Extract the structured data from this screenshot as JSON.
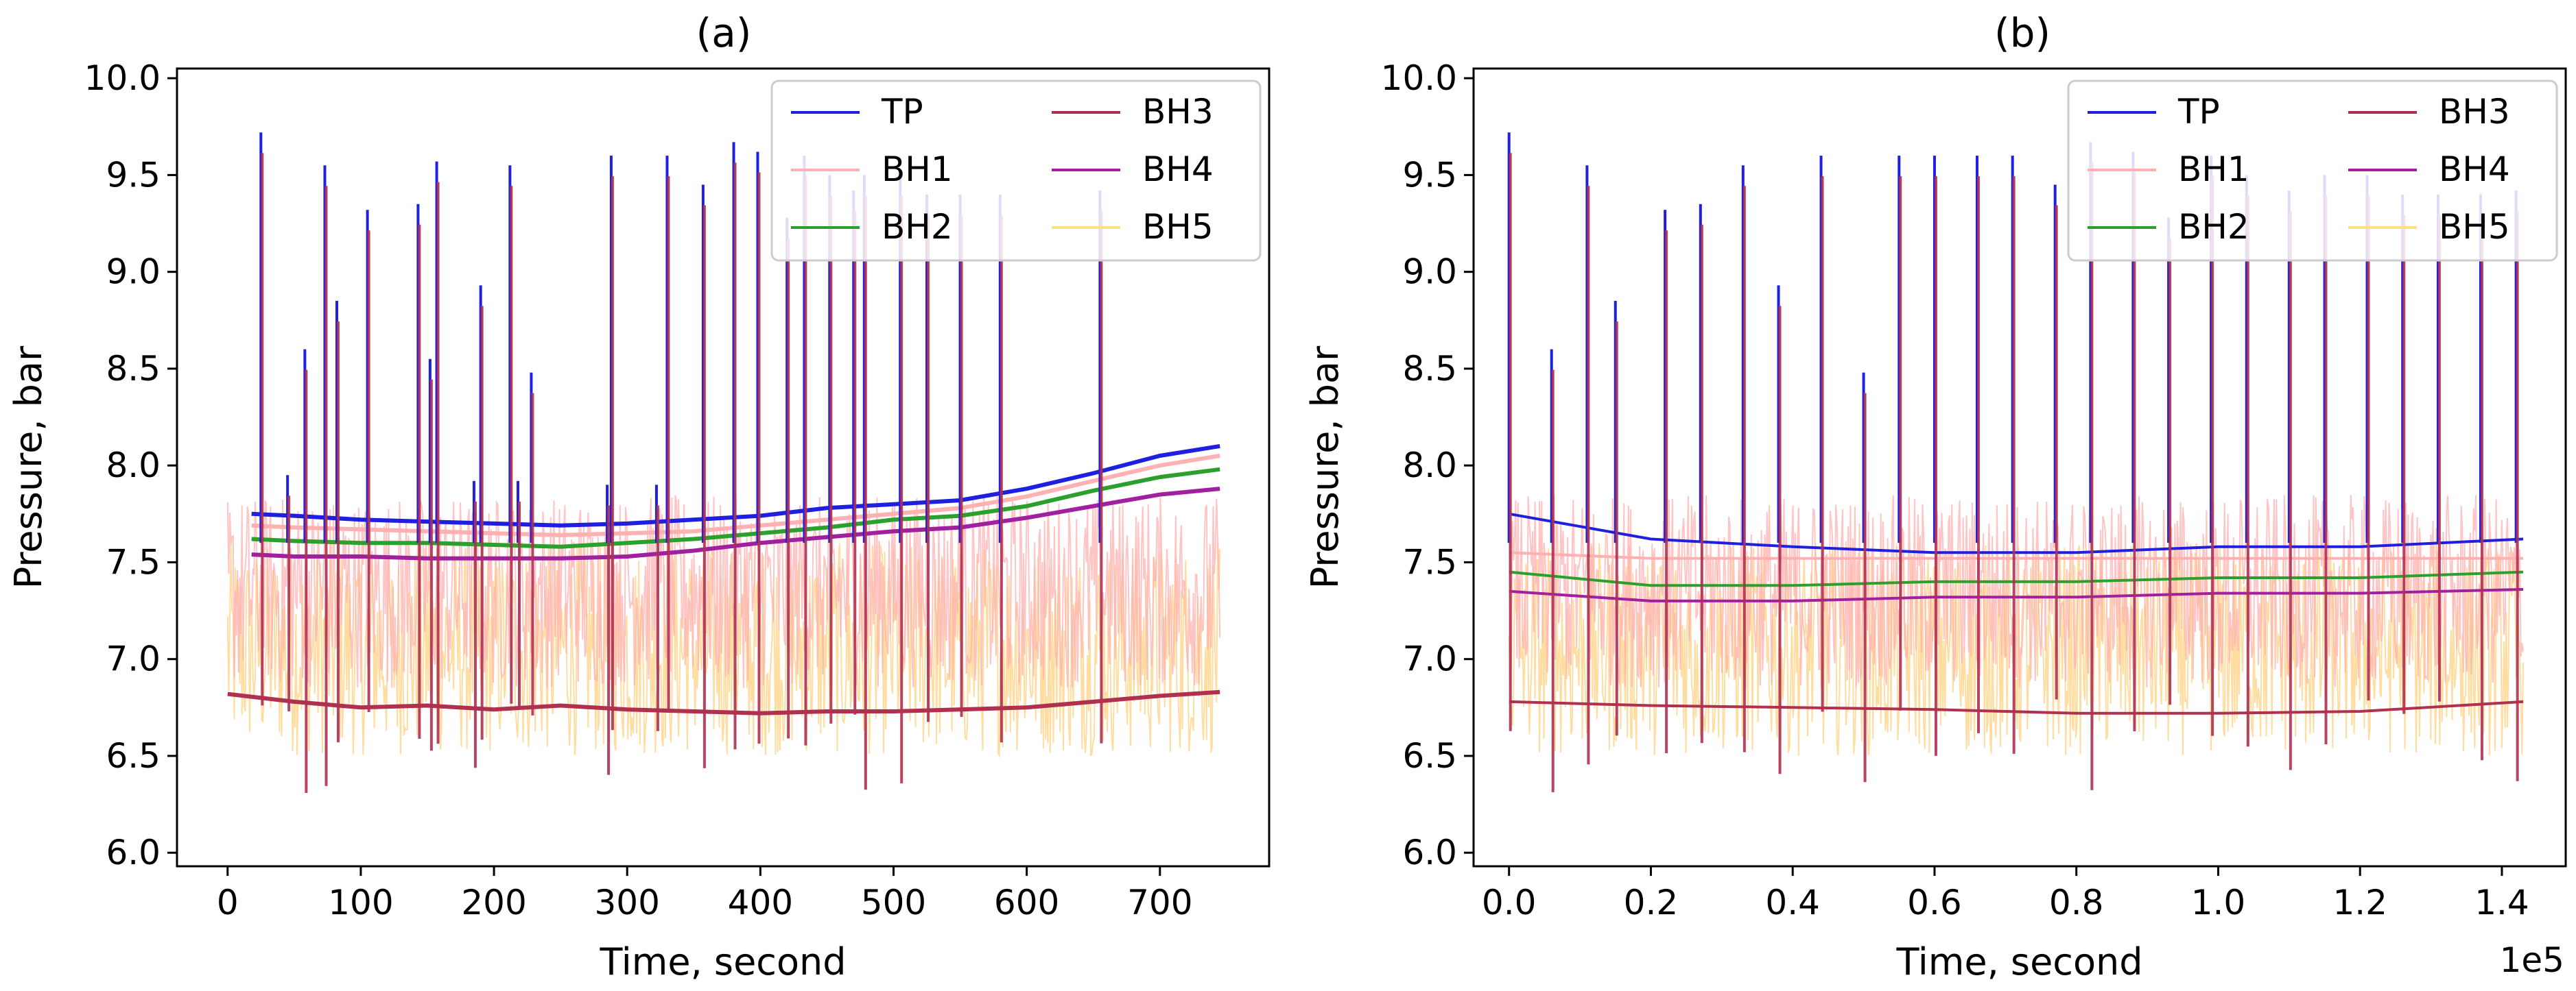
{
  "charts": [
    {
      "id": "a",
      "title": "(a)",
      "xlabel": "Time, second",
      "ylabel": "Pressure, bar",
      "xlim": [
        -38,
        782
      ],
      "ylim": [
        5.93,
        10.05
      ],
      "xticks": [
        0,
        100,
        200,
        300,
        400,
        500,
        600,
        700
      ],
      "xtick_labels": [
        "0",
        "100",
        "200",
        "300",
        "400",
        "500",
        "600",
        "700"
      ],
      "yticks": [
        6.0,
        6.5,
        7.0,
        7.5,
        8.0,
        8.5,
        9.0,
        9.5,
        10.0
      ],
      "ytick_labels": [
        "6.0",
        "6.5",
        "7.0",
        "7.5",
        "8.0",
        "8.5",
        "9.0",
        "9.5",
        "10.0"
      ],
      "x_offset_label": ""
    },
    {
      "id": "b",
      "title": "(b)",
      "xlabel": "Time, second",
      "ylabel": "Pressure, bar",
      "xlim": [
        -0.05,
        1.49
      ],
      "ylim": [
        5.93,
        10.05
      ],
      "xticks": [
        0.0,
        0.2,
        0.4,
        0.6,
        0.8,
        1.0,
        1.2,
        1.4
      ],
      "xtick_labels": [
        "0.0",
        "0.2",
        "0.4",
        "0.6",
        "0.8",
        "1.0",
        "1.2",
        "1.4"
      ],
      "yticks": [
        6.0,
        6.5,
        7.0,
        7.5,
        8.0,
        8.5,
        9.0,
        9.5,
        10.0
      ],
      "ytick_labels": [
        "6.0",
        "6.5",
        "7.0",
        "7.5",
        "8.0",
        "8.5",
        "9.0",
        "9.5",
        "10.0"
      ],
      "x_offset_label": "1e5"
    }
  ],
  "legend": {
    "placement": "top-right",
    "columns": 2,
    "entries": [
      {
        "name": "TP",
        "color": "#1f1fe0"
      },
      {
        "name": "BH1",
        "color": "#ffb0b0"
      },
      {
        "name": "BH2",
        "color": "#2ca02c"
      },
      {
        "name": "BH3",
        "color": "#b03050"
      },
      {
        "name": "BH4",
        "color": "#a020a0"
      },
      {
        "name": "BH5",
        "color": "#ffe080"
      }
    ]
  },
  "chart_data": [
    {
      "type": "line",
      "panel": "a",
      "title": "(a)",
      "xlabel": "Time, second",
      "ylabel": "Pressure, bar",
      "xlim": [
        -38,
        782
      ],
      "ylim": [
        5.93,
        10.05
      ],
      "spike_times": [
        25,
        45,
        58,
        73,
        82,
        105,
        143,
        152,
        157,
        185,
        190,
        212,
        218,
        228,
        285,
        288,
        322,
        330,
        357,
        380,
        398,
        420,
        433,
        452,
        470,
        478,
        505,
        525,
        550,
        580,
        655
      ],
      "spike_peaks": [
        9.72,
        7.95,
        8.6,
        9.55,
        8.85,
        9.32,
        9.35,
        8.55,
        9.57,
        7.92,
        8.93,
        9.55,
        7.92,
        8.48,
        7.9,
        9.6,
        7.9,
        9.6,
        9.45,
        9.67,
        9.62,
        9.28,
        9.6,
        9.5,
        9.42,
        9.5,
        9.5,
        9.4,
        9.4,
        9.4,
        9.42
      ],
      "series": [
        {
          "name": "TP",
          "color": "#1f1fe0",
          "x": [
            18,
            50,
            100,
            150,
            200,
            250,
            300,
            350,
            400,
            450,
            500,
            550,
            600,
            650,
            700,
            745
          ],
          "y": [
            7.75,
            7.74,
            7.72,
            7.71,
            7.7,
            7.69,
            7.7,
            7.72,
            7.74,
            7.78,
            7.8,
            7.82,
            7.88,
            7.96,
            8.05,
            8.1
          ]
        },
        {
          "name": "BH1",
          "color": "#ffb0b0",
          "x": [
            18,
            50,
            100,
            150,
            200,
            250,
            300,
            350,
            400,
            450,
            500,
            550,
            600,
            650,
            700,
            745
          ],
          "y": [
            7.69,
            7.68,
            7.67,
            7.66,
            7.65,
            7.64,
            7.65,
            7.66,
            7.69,
            7.72,
            7.75,
            7.78,
            7.84,
            7.92,
            8.0,
            8.05
          ]
        },
        {
          "name": "BH2",
          "color": "#2ca02c",
          "x": [
            18,
            50,
            100,
            150,
            200,
            250,
            300,
            350,
            400,
            450,
            500,
            550,
            600,
            650,
            700,
            745
          ],
          "y": [
            7.62,
            7.61,
            7.6,
            7.6,
            7.59,
            7.58,
            7.6,
            7.62,
            7.65,
            7.68,
            7.72,
            7.74,
            7.79,
            7.87,
            7.94,
            7.98
          ]
        },
        {
          "name": "BH3",
          "color": "#b03050",
          "x": [
            0,
            50,
            100,
            150,
            200,
            250,
            300,
            350,
            400,
            450,
            500,
            550,
            600,
            650,
            700,
            745
          ],
          "y": [
            6.82,
            6.78,
            6.75,
            6.76,
            6.74,
            6.76,
            6.74,
            6.73,
            6.72,
            6.73,
            6.73,
            6.74,
            6.75,
            6.78,
            6.81,
            6.83
          ]
        },
        {
          "name": "BH4",
          "color": "#a020a0",
          "x": [
            18,
            50,
            100,
            150,
            200,
            250,
            300,
            350,
            400,
            450,
            500,
            550,
            600,
            650,
            700,
            745
          ],
          "y": [
            7.54,
            7.53,
            7.53,
            7.52,
            7.52,
            7.52,
            7.53,
            7.56,
            7.6,
            7.63,
            7.66,
            7.68,
            7.73,
            7.79,
            7.85,
            7.88
          ]
        },
        {
          "name": "BH5",
          "color": "#ffe080",
          "x": [
            0,
            100,
            200,
            300,
            400,
            500,
            600,
            700,
            745
          ],
          "y": [
            7.2,
            7.2,
            7.2,
            7.2,
            7.2,
            7.2,
            7.2,
            7.2,
            7.2
          ]
        }
      ]
    },
    {
      "type": "line",
      "panel": "b",
      "title": "(b)",
      "xlabel": "Time, second",
      "ylabel": "Pressure, bar",
      "x_scale": "1e5",
      "xlim": [
        -0.05,
        1.49
      ],
      "ylim": [
        5.93,
        10.05
      ],
      "spike_times": [
        0.0,
        0.06,
        0.11,
        0.15,
        0.22,
        0.27,
        0.33,
        0.38,
        0.44,
        0.5,
        0.55,
        0.6,
        0.66,
        0.71,
        0.77,
        0.82,
        0.88,
        0.93,
        0.99,
        1.04,
        1.1,
        1.15,
        1.21,
        1.26,
        1.31,
        1.37,
        1.42
      ],
      "spike_peaks": [
        9.72,
        8.6,
        9.55,
        8.85,
        9.32,
        9.35,
        9.55,
        8.93,
        9.6,
        8.48,
        9.6,
        9.6,
        9.6,
        9.6,
        9.45,
        9.67,
        9.62,
        9.28,
        9.6,
        9.5,
        9.42,
        9.5,
        9.5,
        9.4,
        9.4,
        9.4,
        9.42
      ],
      "series": [
        {
          "name": "TP",
          "color": "#1f1fe0",
          "x": [
            0.0,
            0.2,
            0.4,
            0.6,
            0.8,
            1.0,
            1.2,
            1.43
          ],
          "y": [
            7.75,
            7.62,
            7.58,
            7.55,
            7.55,
            7.58,
            7.58,
            7.62
          ]
        },
        {
          "name": "BH1",
          "color": "#ffb0b0",
          "x": [
            0.0,
            0.2,
            0.4,
            0.6,
            0.8,
            1.0,
            1.2,
            1.43
          ],
          "y": [
            7.55,
            7.52,
            7.52,
            7.52,
            7.52,
            7.52,
            7.52,
            7.52
          ]
        },
        {
          "name": "BH2",
          "color": "#2ca02c",
          "x": [
            0.0,
            0.2,
            0.4,
            0.6,
            0.8,
            1.0,
            1.2,
            1.43
          ],
          "y": [
            7.45,
            7.38,
            7.38,
            7.4,
            7.4,
            7.42,
            7.42,
            7.45
          ]
        },
        {
          "name": "BH3",
          "color": "#b03050",
          "x": [
            0.0,
            0.2,
            0.4,
            0.6,
            0.8,
            1.0,
            1.2,
            1.43
          ],
          "y": [
            6.78,
            6.76,
            6.75,
            6.74,
            6.72,
            6.72,
            6.73,
            6.78
          ]
        },
        {
          "name": "BH4",
          "color": "#a020a0",
          "x": [
            0.0,
            0.2,
            0.4,
            0.6,
            0.8,
            1.0,
            1.2,
            1.43
          ],
          "y": [
            7.35,
            7.3,
            7.3,
            7.32,
            7.32,
            7.34,
            7.34,
            7.36
          ]
        },
        {
          "name": "BH5",
          "color": "#ffe080",
          "x": [
            0.0,
            0.2,
            0.4,
            0.6,
            0.8,
            1.0,
            1.2,
            1.43
          ],
          "y": [
            7.1,
            7.12,
            7.12,
            7.12,
            7.12,
            7.12,
            7.12,
            7.14
          ]
        }
      ]
    }
  ]
}
